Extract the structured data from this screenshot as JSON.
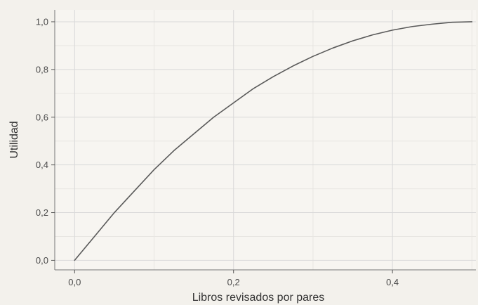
{
  "chart_data": {
    "type": "line",
    "title": "",
    "xlabel": "Libros revisados por pares",
    "ylabel": "Utilidad",
    "xlim": [
      -0.025,
      0.505
    ],
    "ylim": [
      -0.04,
      1.05
    ],
    "grid": true,
    "x_ticks": [
      0.0,
      0.2,
      0.4
    ],
    "x_tick_labels": [
      "0,0",
      "0,2",
      "0,4"
    ],
    "y_ticks": [
      0.0,
      0.2,
      0.4,
      0.6,
      0.8,
      1.0
    ],
    "y_tick_labels": [
      "0,0",
      "0,2",
      "0,4",
      "0,6",
      "0,8",
      "1,0"
    ],
    "series": [
      {
        "color": "#5a5a5a",
        "x": [
          0.0,
          0.025,
          0.05,
          0.075,
          0.1,
          0.125,
          0.15,
          0.175,
          0.2,
          0.225,
          0.25,
          0.275,
          0.3,
          0.325,
          0.35,
          0.375,
          0.4,
          0.425,
          0.45,
          0.475,
          0.5
        ],
        "y": [
          0.0,
          0.1,
          0.2,
          0.29,
          0.38,
          0.46,
          0.53,
          0.6,
          0.66,
          0.72,
          0.77,
          0.815,
          0.855,
          0.89,
          0.92,
          0.945,
          0.965,
          0.98,
          0.99,
          0.998,
          1.0
        ]
      }
    ]
  },
  "colors": {
    "background": "#f3f1ec",
    "plot_background": "#f7f5f1",
    "grid_major": "#d9d9d9",
    "grid_minor": "#e8e6e2",
    "axis": "#555555"
  }
}
